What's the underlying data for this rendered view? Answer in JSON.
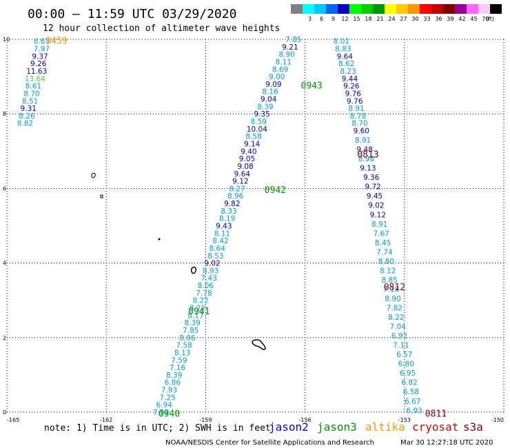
{
  "header": {
    "title": "00:00 – 11:59 UTC 03/29/2020",
    "subtitle": "12 hour collection of altimeter wave heights"
  },
  "legend": {
    "unit": "(ft)",
    "bins": [
      {
        "label": "",
        "color": "#808080"
      },
      {
        "label": "3",
        "color": "#00ffff"
      },
      {
        "label": "6",
        "color": "#00c8ff"
      },
      {
        "label": "9",
        "color": "#0064ff"
      },
      {
        "label": "12",
        "color": "#0000c8"
      },
      {
        "label": "15",
        "color": "#00ff00"
      },
      {
        "label": "18",
        "color": "#00d200"
      },
      {
        "label": "21",
        "color": "#009600"
      },
      {
        "label": "24",
        "color": "#ffff00"
      },
      {
        "label": "27",
        "color": "#ffc800"
      },
      {
        "label": "30",
        "color": "#ff9600"
      },
      {
        "label": "33",
        "color": "#ff0000"
      },
      {
        "label": "36",
        "color": "#c80000"
      },
      {
        "label": "39",
        "color": "#820000"
      },
      {
        "label": "42",
        "color": "#960096"
      },
      {
        "label": "45",
        "color": "#ff64ff"
      },
      {
        "label": "70",
        "color": "#ffc8ff"
      },
      {
        "label": "",
        "color": "#000000"
      }
    ]
  },
  "note": "note: 1) Time is in UTC; 2) SWH is in feet",
  "satellites": [
    {
      "name": "jason2",
      "color": "#0000ff"
    },
    {
      "name": "jason3",
      "color": "#009600"
    },
    {
      "name": "altika",
      "color": "#ff9600"
    },
    {
      "name": "cryosat",
      "color": "#e00000"
    },
    {
      "name": "s3a",
      "color": "#800000"
    }
  ],
  "footer": {
    "credit": "NOAA/NESDIS Center for Satellite Applications and Research",
    "timestamp": "Mar 30 12:27:18 UTC 2020"
  },
  "chart_data": {
    "type": "scatter",
    "title": "00:00 – 11:59 UTC 03/29/2020",
    "subtitle": "12 hour collection of altimeter wave heights",
    "value_unit": "ft",
    "xlim": [
      -165,
      -150
    ],
    "ylim": [
      0,
      10
    ],
    "xticks": [
      "-165",
      "-162",
      "-159",
      "-156",
      "-153",
      "-150"
    ],
    "yticks": [
      "0",
      "2",
      "4",
      "6",
      "8",
      "10"
    ],
    "grid": true,
    "tracks": [
      {
        "time": "0459",
        "time_color": "#ff9600",
        "time_pos": [
          -163.5,
          9.95
        ],
        "points": [
          {
            "x": -163.95,
            "y": 9.95,
            "v": "8.63",
            "c": "#00a0dc"
          },
          {
            "x": -163.95,
            "y": 9.75,
            "v": "7.97",
            "c": "#00a0dc"
          },
          {
            "x": -164.0,
            "y": 9.55,
            "v": "9.37",
            "c": "#0000c8"
          },
          {
            "x": -164.05,
            "y": 9.35,
            "v": "9.26",
            "c": "#0000c8"
          },
          {
            "x": -164.1,
            "y": 9.15,
            "v": "11.63",
            "c": "#0000c8"
          },
          {
            "x": -164.15,
            "y": 8.95,
            "v": "13.64",
            "c": "#40e040"
          },
          {
            "x": -164.2,
            "y": 8.75,
            "v": "8.61",
            "c": "#00a0dc"
          },
          {
            "x": -164.25,
            "y": 8.55,
            "v": "8.70",
            "c": "#00a0dc"
          },
          {
            "x": -164.3,
            "y": 8.35,
            "v": "8.51",
            "c": "#00a0dc"
          },
          {
            "x": -164.35,
            "y": 8.15,
            "v": "9.31",
            "c": "#0000c8"
          },
          {
            "x": -164.4,
            "y": 7.95,
            "v": "8.26",
            "c": "#00a0dc"
          },
          {
            "x": -164.45,
            "y": 7.75,
            "v": "8.82",
            "c": "#00a0dc"
          }
        ]
      },
      {
        "time": "0943",
        "time_color": "#009600",
        "time_pos": [
          -155.8,
          8.75
        ],
        "points": [
          {
            "x": -156.35,
            "y": 10.0,
            "v": "7.85",
            "c": "#00a0dc"
          },
          {
            "x": -156.45,
            "y": 9.8,
            "v": "9.21",
            "c": "#0000c8"
          },
          {
            "x": -156.55,
            "y": 9.6,
            "v": "8.90",
            "c": "#00a0dc"
          },
          {
            "x": -156.65,
            "y": 9.4,
            "v": "8.11",
            "c": "#00a0dc"
          },
          {
            "x": -156.75,
            "y": 9.2,
            "v": "8.69",
            "c": "#00a0dc"
          },
          {
            "x": -156.85,
            "y": 9.0,
            "v": "9.00",
            "c": "#00a0dc"
          },
          {
            "x": -156.95,
            "y": 8.8,
            "v": "9.09",
            "c": "#0000c8"
          },
          {
            "x": -157.05,
            "y": 8.6,
            "v": "8.16",
            "c": "#00a0dc"
          },
          {
            "x": -157.1,
            "y": 8.4,
            "v": "9.04",
            "c": "#0000c8"
          },
          {
            "x": -157.2,
            "y": 8.2,
            "v": "8.39",
            "c": "#00a0dc"
          },
          {
            "x": -157.3,
            "y": 8.0,
            "v": "9.35",
            "c": "#0000c8"
          },
          {
            "x": -157.4,
            "y": 7.8,
            "v": "8.59",
            "c": "#00a0dc"
          },
          {
            "x": -157.45,
            "y": 7.6,
            "v": "10.04",
            "c": "#0000c8"
          },
          {
            "x": -157.55,
            "y": 7.4,
            "v": "8.58",
            "c": "#00a0dc"
          },
          {
            "x": -157.6,
            "y": 7.2,
            "v": "9.14",
            "c": "#0000c8"
          },
          {
            "x": -157.7,
            "y": 7.0,
            "v": "9.40",
            "c": "#0000c8"
          },
          {
            "x": -157.75,
            "y": 6.8,
            "v": "9.05",
            "c": "#0000c8"
          },
          {
            "x": -157.8,
            "y": 6.6,
            "v": "9.08",
            "c": "#0000c8"
          },
          {
            "x": -157.9,
            "y": 6.4,
            "v": "9.64",
            "c": "#0000c8"
          },
          {
            "x": -157.95,
            "y": 6.2,
            "v": "9.12",
            "c": "#0000c8"
          }
        ]
      },
      {
        "time": "0942",
        "time_color": "#009600",
        "time_pos": [
          -156.9,
          5.95
        ],
        "points": [
          {
            "x": -158.05,
            "y": 6.0,
            "v": "8.27",
            "c": "#00a0dc"
          },
          {
            "x": -158.1,
            "y": 5.8,
            "v": "8.96",
            "c": "#00a0dc"
          },
          {
            "x": -158.2,
            "y": 5.6,
            "v": "9.82",
            "c": "#0000c8"
          },
          {
            "x": -158.3,
            "y": 5.4,
            "v": "8.33",
            "c": "#00a0dc"
          },
          {
            "x": -158.35,
            "y": 5.2,
            "v": "8.19",
            "c": "#00a0dc"
          },
          {
            "x": -158.45,
            "y": 5.0,
            "v": "9.43",
            "c": "#0000c8"
          },
          {
            "x": -158.5,
            "y": 4.8,
            "v": "8.11",
            "c": "#00a0dc"
          },
          {
            "x": -158.55,
            "y": 4.6,
            "v": "8.42",
            "c": "#00a0dc"
          },
          {
            "x": -158.65,
            "y": 4.4,
            "v": "8.64",
            "c": "#00a0dc"
          },
          {
            "x": -158.7,
            "y": 4.2,
            "v": "8.53",
            "c": "#00a0dc"
          },
          {
            "x": -158.8,
            "y": 4.0,
            "v": "9.02",
            "c": "#0000c8"
          },
          {
            "x": -158.85,
            "y": 3.8,
            "v": "8.93",
            "c": "#00a0dc"
          }
        ]
      },
      {
        "time": "0941",
        "time_color": "#009600",
        "time_pos": [
          -159.2,
          2.7
        ],
        "points": [
          {
            "x": -158.9,
            "y": 3.6,
            "v": "7.43",
            "c": "#00a0dc"
          },
          {
            "x": -159.0,
            "y": 3.4,
            "v": "8.06",
            "c": "#00a0dc"
          },
          {
            "x": -159.05,
            "y": 3.2,
            "v": "7.78",
            "c": "#00a0dc"
          },
          {
            "x": -159.15,
            "y": 3.0,
            "v": "8.22",
            "c": "#00a0dc"
          },
          {
            "x": -159.25,
            "y": 2.8,
            "v": "8.22",
            "c": "#00a0dc"
          },
          {
            "x": -159.3,
            "y": 2.6,
            "v": "8.17",
            "c": "#00a0dc"
          },
          {
            "x": -159.4,
            "y": 2.4,
            "v": "8.39",
            "c": "#00a0dc"
          },
          {
            "x": -159.45,
            "y": 2.2,
            "v": "7.85",
            "c": "#00a0dc"
          },
          {
            "x": -159.55,
            "y": 2.0,
            "v": "8.06",
            "c": "#00a0dc"
          }
        ]
      },
      {
        "time": "0940",
        "time_color": "#009600",
        "time_pos": [
          -160.1,
          -0.05
        ],
        "points": [
          {
            "x": -159.65,
            "y": 1.8,
            "v": "7.58",
            "c": "#00a0dc"
          },
          {
            "x": -159.7,
            "y": 1.6,
            "v": "8.13",
            "c": "#00a0dc"
          },
          {
            "x": -159.8,
            "y": 1.4,
            "v": "7.59",
            "c": "#00a0dc"
          },
          {
            "x": -159.85,
            "y": 1.2,
            "v": "7.16",
            "c": "#00a0dc"
          },
          {
            "x": -159.95,
            "y": 1.0,
            "v": "8.39",
            "c": "#00a0dc"
          },
          {
            "x": -160.0,
            "y": 0.8,
            "v": "6.86",
            "c": "#00a0dc"
          },
          {
            "x": -160.1,
            "y": 0.6,
            "v": "7.93",
            "c": "#00a0dc"
          },
          {
            "x": -160.15,
            "y": 0.4,
            "v": "7.25",
            "c": "#00a0dc"
          },
          {
            "x": -160.25,
            "y": 0.2,
            "v": "6.94",
            "c": "#00a0dc"
          },
          {
            "x": -160.35,
            "y": 0.0,
            "v": "7.59",
            "c": "#00a0dc"
          }
        ]
      },
      {
        "time": "0813",
        "time_color": "#800000",
        "time_pos": [
          -154.1,
          6.9
        ],
        "points": [
          {
            "x": -154.9,
            "y": 9.95,
            "v": "8.01",
            "c": "#00a0dc"
          },
          {
            "x": -154.85,
            "y": 9.75,
            "v": "8.83",
            "c": "#00a0dc"
          },
          {
            "x": -154.8,
            "y": 9.55,
            "v": "9.64",
            "c": "#0000c8"
          },
          {
            "x": -154.75,
            "y": 9.35,
            "v": "8.62",
            "c": "#00a0dc"
          },
          {
            "x": -154.7,
            "y": 9.15,
            "v": "8.23",
            "c": "#00a0dc"
          },
          {
            "x": -154.65,
            "y": 8.95,
            "v": "9.44",
            "c": "#0000c8"
          },
          {
            "x": -154.6,
            "y": 8.75,
            "v": "9.26",
            "c": "#0000c8"
          },
          {
            "x": -154.55,
            "y": 8.55,
            "v": "9.76",
            "c": "#0000c8"
          },
          {
            "x": -154.5,
            "y": 8.35,
            "v": "9.76",
            "c": "#0000c8"
          },
          {
            "x": -154.45,
            "y": 8.15,
            "v": "8.91",
            "c": "#00a0dc"
          },
          {
            "x": -154.4,
            "y": 7.95,
            "v": "8.78",
            "c": "#00a0dc"
          },
          {
            "x": -154.35,
            "y": 7.75,
            "v": "8.70",
            "c": "#00a0dc"
          },
          {
            "x": -154.3,
            "y": 7.55,
            "v": "9.60",
            "c": "#0000c8"
          },
          {
            "x": -154.25,
            "y": 7.3,
            "v": "8.91",
            "c": "#00a0dc"
          },
          {
            "x": -154.2,
            "y": 7.05,
            "v": "9.48",
            "c": "#0000c8"
          },
          {
            "x": -154.15,
            "y": 6.8,
            "v": "8.98",
            "c": "#00a0dc"
          },
          {
            "x": -154.1,
            "y": 6.55,
            "v": "9.13",
            "c": "#0000c8"
          }
        ]
      },
      {
        "time": "0812",
        "time_color": "#800000",
        "time_pos": [
          -153.3,
          3.35
        ],
        "points": [
          {
            "x": -154.0,
            "y": 6.3,
            "v": "9.36",
            "c": "#0000c8"
          },
          {
            "x": -153.95,
            "y": 6.05,
            "v": "9.72",
            "c": "#0000c8"
          },
          {
            "x": -153.9,
            "y": 5.8,
            "v": "9.45",
            "c": "#0000c8"
          },
          {
            "x": -153.85,
            "y": 5.55,
            "v": "9.02",
            "c": "#0000c8"
          },
          {
            "x": -153.8,
            "y": 5.3,
            "v": "9.12",
            "c": "#0000c8"
          },
          {
            "x": -153.75,
            "y": 5.05,
            "v": "8.91",
            "c": "#00a0dc"
          },
          {
            "x": -153.7,
            "y": 4.8,
            "v": "7.67",
            "c": "#00a0dc"
          },
          {
            "x": -153.65,
            "y": 4.55,
            "v": "8.45",
            "c": "#00a0dc"
          },
          {
            "x": -153.6,
            "y": 4.3,
            "v": "7.74",
            "c": "#00a0dc"
          },
          {
            "x": -153.55,
            "y": 4.05,
            "v": "8.80",
            "c": "#00a0dc"
          },
          {
            "x": -153.5,
            "y": 3.8,
            "v": "8.12",
            "c": "#00a0dc"
          },
          {
            "x": -153.45,
            "y": 3.55,
            "v": "8.85",
            "c": "#00a0dc"
          },
          {
            "x": -153.4,
            "y": 3.3,
            "v": "7.18",
            "c": "#00a0dc"
          },
          {
            "x": -153.35,
            "y": 3.05,
            "v": "8.90",
            "c": "#00a0dc"
          },
          {
            "x": -153.3,
            "y": 2.8,
            "v": "7.82",
            "c": "#00a0dc"
          }
        ]
      },
      {
        "time": "0811",
        "time_color": "#800000",
        "time_pos": [
          -152.05,
          -0.05
        ],
        "points": [
          {
            "x": -153.25,
            "y": 2.55,
            "v": "8.22",
            "c": "#00a0dc"
          },
          {
            "x": -153.2,
            "y": 2.3,
            "v": "7.04",
            "c": "#00a0dc"
          },
          {
            "x": -153.15,
            "y": 2.05,
            "v": "6.92",
            "c": "#00a0dc"
          },
          {
            "x": -153.1,
            "y": 1.8,
            "v": "7.11",
            "c": "#00a0dc"
          },
          {
            "x": -153.0,
            "y": 1.55,
            "v": "6.57",
            "c": "#00a0dc"
          },
          {
            "x": -152.95,
            "y": 1.3,
            "v": "6.80",
            "c": "#00a0dc"
          },
          {
            "x": -152.9,
            "y": 1.05,
            "v": "6.95",
            "c": "#00a0dc"
          },
          {
            "x": -152.85,
            "y": 0.8,
            "v": "6.82",
            "c": "#00a0dc"
          },
          {
            "x": -152.8,
            "y": 0.55,
            "v": "6.58",
            "c": "#00a0dc"
          },
          {
            "x": -152.75,
            "y": 0.3,
            "v": "6.67",
            "c": "#00a0dc"
          },
          {
            "x": -152.7,
            "y": 0.05,
            "v": "6.93",
            "c": "#00a0dc"
          }
        ]
      }
    ]
  }
}
